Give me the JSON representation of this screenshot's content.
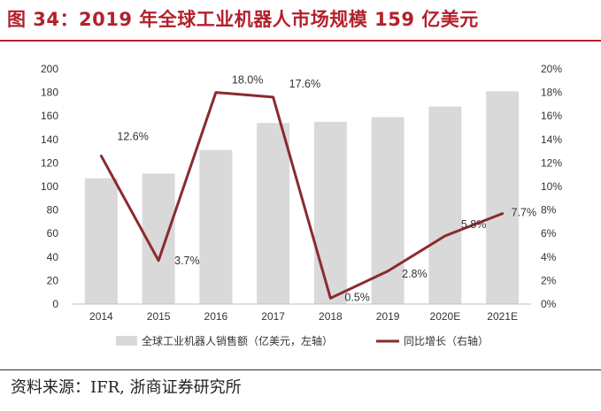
{
  "title": "图 34：2019 年全球工业机器人市场规模 159 亿美元",
  "source": "资料来源：IFR, 浙商证券研究所",
  "colors": {
    "bar": "#d9d9d9",
    "line": "#8b2a2e",
    "title": "#b3202c",
    "text": "#333333"
  },
  "chart_data": {
    "type": "bar",
    "categories": [
      "2014",
      "2015",
      "2016",
      "2017",
      "2018",
      "2019",
      "2020E",
      "2021E"
    ],
    "series": [
      {
        "name": "全球工业机器人销售额（亿美元，左轴）",
        "type": "bar",
        "axis": "left",
        "values": [
          107,
          111,
          131,
          154,
          155,
          159,
          168,
          181
        ]
      },
      {
        "name": "同比增长（右轴）",
        "type": "line",
        "axis": "right",
        "values": [
          12.6,
          3.7,
          18.0,
          17.6,
          0.5,
          2.8,
          5.8,
          7.7
        ],
        "labels": [
          "12.6%",
          "3.7%",
          "18.0%",
          "17.6%",
          "0.5%",
          "2.8%",
          "5.8%",
          "7.7%"
        ]
      }
    ],
    "y_left": {
      "min": 0,
      "max": 200,
      "step": 20,
      "ticks": [
        "0",
        "20",
        "40",
        "60",
        "80",
        "100",
        "120",
        "140",
        "160",
        "180",
        "200"
      ]
    },
    "y_right": {
      "min": 0,
      "max": 20,
      "step": 2,
      "ticks": [
        "0%",
        "2%",
        "4%",
        "6%",
        "8%",
        "10%",
        "12%",
        "14%",
        "16%",
        "18%",
        "20%"
      ]
    },
    "legend": {
      "placement": "bottom",
      "items": [
        "全球工业机器人销售额（亿美元，左轴）",
        "同比增长（右轴）"
      ]
    },
    "grid": false
  }
}
